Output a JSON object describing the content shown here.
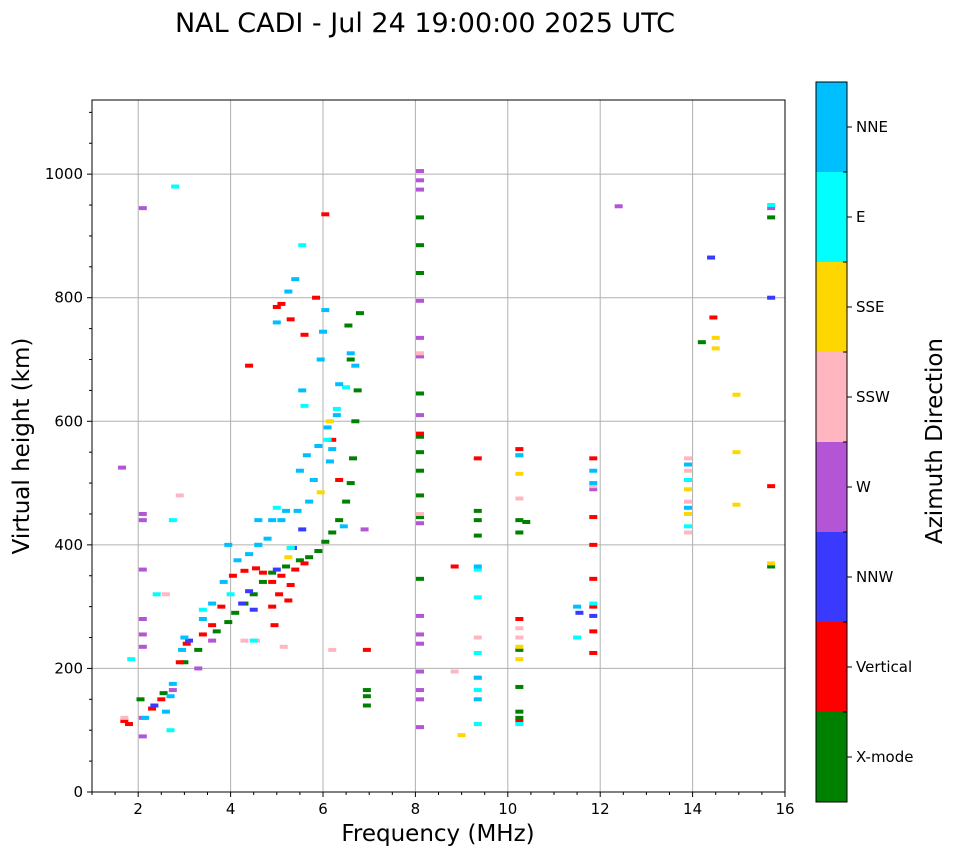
{
  "chart_data": {
    "type": "scatter",
    "title": "NAL CADI - Jul 24 19:00:00 2025 UTC",
    "xlabel": "Frequency (MHz)",
    "ylabel": "Virtual height (km)",
    "xlim": [
      1,
      16
    ],
    "ylim": [
      0,
      1120
    ],
    "xticks": [
      2,
      4,
      6,
      8,
      10,
      12,
      14,
      16
    ],
    "yticks": [
      0,
      200,
      400,
      600,
      800,
      1000
    ],
    "grid": true,
    "colorbar": {
      "label": "Azimuth Direction",
      "categories": [
        "X-mode",
        "Vertical",
        "NNW",
        "W",
        "SSW",
        "SSE",
        "E",
        "NNE"
      ],
      "colors": [
        "#008000",
        "#ff0000",
        "#3a3aff",
        "#b455d6",
        "#ffb6c1",
        "#ffd700",
        "#00ffff",
        "#00bfff"
      ]
    },
    "series": [
      {
        "name": "X-mode",
        "points": [
          [
            2.05,
            150
          ],
          [
            2.55,
            160
          ],
          [
            3.0,
            210
          ],
          [
            3.3,
            230
          ],
          [
            3.7,
            260
          ],
          [
            3.95,
            275
          ],
          [
            4.1,
            290
          ],
          [
            4.3,
            305
          ],
          [
            4.5,
            320
          ],
          [
            4.7,
            340
          ],
          [
            4.9,
            355
          ],
          [
            5.2,
            365
          ],
          [
            5.5,
            375
          ],
          [
            5.7,
            380
          ],
          [
            5.9,
            390
          ],
          [
            6.05,
            405
          ],
          [
            6.2,
            420
          ],
          [
            6.35,
            440
          ],
          [
            6.5,
            470
          ],
          [
            6.6,
            500
          ],
          [
            6.65,
            540
          ],
          [
            6.7,
            600
          ],
          [
            6.75,
            650
          ],
          [
            6.6,
            700
          ],
          [
            6.55,
            755
          ],
          [
            6.8,
            775
          ],
          [
            6.95,
            140
          ],
          [
            6.95,
            155
          ],
          [
            6.95,
            165
          ],
          [
            8.1,
            345
          ],
          [
            8.1,
            445
          ],
          [
            8.1,
            480
          ],
          [
            8.1,
            520
          ],
          [
            8.1,
            550
          ],
          [
            8.1,
            575
          ],
          [
            8.1,
            645
          ],
          [
            8.1,
            840
          ],
          [
            8.1,
            885
          ],
          [
            8.1,
            930
          ],
          [
            9.35,
            440
          ],
          [
            9.35,
            455
          ],
          [
            9.35,
            415
          ],
          [
            10.25,
            120
          ],
          [
            10.25,
            130
          ],
          [
            10.25,
            170
          ],
          [
            10.25,
            230
          ],
          [
            10.25,
            420
          ],
          [
            10.25,
            440
          ],
          [
            10.4,
            437
          ],
          [
            14.2,
            728
          ],
          [
            15.7,
            365
          ],
          [
            15.7,
            930
          ]
        ]
      },
      {
        "name": "Vertical",
        "points": [
          [
            1.7,
            115
          ],
          [
            1.8,
            110
          ],
          [
            2.3,
            135
          ],
          [
            2.5,
            150
          ],
          [
            2.9,
            210
          ],
          [
            3.05,
            240
          ],
          [
            3.4,
            255
          ],
          [
            3.6,
            270
          ],
          [
            3.8,
            300
          ],
          [
            4.05,
            350
          ],
          [
            4.3,
            358
          ],
          [
            4.55,
            362
          ],
          [
            4.7,
            355
          ],
          [
            4.9,
            340
          ],
          [
            5.1,
            350
          ],
          [
            5.4,
            360
          ],
          [
            5.6,
            370
          ],
          [
            5.3,
            335
          ],
          [
            5.25,
            310
          ],
          [
            5.05,
            320
          ],
          [
            4.95,
            270
          ],
          [
            4.9,
            300
          ],
          [
            5.0,
            785
          ],
          [
            5.1,
            790
          ],
          [
            5.3,
            765
          ],
          [
            5.6,
            740
          ],
          [
            6.05,
            935
          ],
          [
            5.85,
            800
          ],
          [
            4.4,
            690
          ],
          [
            6.2,
            570
          ],
          [
            6.35,
            505
          ],
          [
            6.95,
            230
          ],
          [
            8.1,
            580
          ],
          [
            8.85,
            365
          ],
          [
            9.35,
            540
          ],
          [
            10.25,
            115
          ],
          [
            10.25,
            555
          ],
          [
            10.25,
            280
          ],
          [
            11.85,
            225
          ],
          [
            11.85,
            260
          ],
          [
            11.85,
            300
          ],
          [
            11.85,
            345
          ],
          [
            11.85,
            400
          ],
          [
            11.85,
            445
          ],
          [
            11.85,
            540
          ],
          [
            14.45,
            768
          ],
          [
            15.7,
            495
          ]
        ]
      },
      {
        "name": "NNW",
        "points": [
          [
            2.35,
            140
          ],
          [
            3.1,
            245
          ],
          [
            4.25,
            305
          ],
          [
            4.4,
            325
          ],
          [
            4.5,
            295
          ],
          [
            5.0,
            360
          ],
          [
            5.35,
            395
          ],
          [
            5.55,
            425
          ],
          [
            11.55,
            290
          ],
          [
            11.85,
            285
          ],
          [
            14.4,
            865
          ],
          [
            15.7,
            800
          ]
        ]
      },
      {
        "name": "W",
        "points": [
          [
            1.65,
            525
          ],
          [
            2.1,
            90
          ],
          [
            2.1,
            120
          ],
          [
            2.1,
            235
          ],
          [
            2.1,
            255
          ],
          [
            2.1,
            280
          ],
          [
            2.1,
            360
          ],
          [
            2.1,
            450
          ],
          [
            2.1,
            440
          ],
          [
            2.1,
            945
          ],
          [
            2.75,
            165
          ],
          [
            3.3,
            200
          ],
          [
            3.6,
            245
          ],
          [
            6.9,
            425
          ],
          [
            8.1,
            105
          ],
          [
            8.1,
            150
          ],
          [
            8.1,
            165
          ],
          [
            8.1,
            195
          ],
          [
            8.1,
            240
          ],
          [
            8.1,
            255
          ],
          [
            8.1,
            285
          ],
          [
            8.1,
            435
          ],
          [
            8.1,
            610
          ],
          [
            8.1,
            705
          ],
          [
            8.1,
            735
          ],
          [
            8.1,
            795
          ],
          [
            8.1,
            975
          ],
          [
            8.1,
            990
          ],
          [
            8.1,
            1005
          ],
          [
            12.4,
            948
          ],
          [
            11.85,
            490
          ],
          [
            15.7,
            945
          ]
        ]
      },
      {
        "name": "SSW",
        "points": [
          [
            1.7,
            120
          ],
          [
            2.6,
            320
          ],
          [
            2.9,
            480
          ],
          [
            4.3,
            245
          ],
          [
            4.55,
            245
          ],
          [
            5.15,
            235
          ],
          [
            6.2,
            230
          ],
          [
            8.1,
            450
          ],
          [
            8.1,
            710
          ],
          [
            8.85,
            195
          ],
          [
            9.35,
            250
          ],
          [
            10.25,
            110
          ],
          [
            10.25,
            250
          ],
          [
            10.25,
            265
          ],
          [
            10.25,
            475
          ],
          [
            11.85,
            495
          ],
          [
            13.9,
            420
          ],
          [
            13.9,
            470
          ],
          [
            13.9,
            520
          ],
          [
            13.9,
            540
          ]
        ]
      },
      {
        "name": "SSE",
        "points": [
          [
            5.25,
            380
          ],
          [
            5.3,
            395
          ],
          [
            5.95,
            485
          ],
          [
            6.15,
            600
          ],
          [
            9.0,
            92
          ],
          [
            10.25,
            215
          ],
          [
            10.25,
            235
          ],
          [
            10.25,
            515
          ],
          [
            13.9,
            450
          ],
          [
            13.9,
            490
          ],
          [
            14.5,
            735
          ],
          [
            14.5,
            718
          ],
          [
            14.95,
            643
          ],
          [
            14.95,
            550
          ],
          [
            14.95,
            465
          ],
          [
            15.7,
            370
          ]
        ]
      },
      {
        "name": "E",
        "points": [
          [
            1.85,
            215
          ],
          [
            2.4,
            320
          ],
          [
            2.7,
            100
          ],
          [
            2.75,
            440
          ],
          [
            2.8,
            980
          ],
          [
            3.4,
            295
          ],
          [
            4.0,
            320
          ],
          [
            4.5,
            245
          ],
          [
            4.6,
            400
          ],
          [
            5.0,
            460
          ],
          [
            5.3,
            395
          ],
          [
            5.55,
            885
          ],
          [
            5.6,
            625
          ],
          [
            6.1,
            570
          ],
          [
            6.3,
            620
          ],
          [
            6.5,
            655
          ],
          [
            9.35,
            110
          ],
          [
            9.35,
            165
          ],
          [
            9.35,
            185
          ],
          [
            9.35,
            225
          ],
          [
            9.35,
            360
          ],
          [
            9.35,
            315
          ],
          [
            10.25,
            110
          ],
          [
            10.25,
            545
          ],
          [
            11.5,
            250
          ],
          [
            11.85,
            305
          ],
          [
            13.9,
            430
          ],
          [
            13.9,
            505
          ],
          [
            15.7,
            950
          ]
        ]
      },
      {
        "name": "NNE",
        "points": [
          [
            2.15,
            120
          ],
          [
            2.6,
            130
          ],
          [
            2.7,
            155
          ],
          [
            2.75,
            175
          ],
          [
            2.95,
            230
          ],
          [
            3.0,
            250
          ],
          [
            3.4,
            280
          ],
          [
            3.6,
            305
          ],
          [
            3.85,
            340
          ],
          [
            3.95,
            400
          ],
          [
            4.15,
            375
          ],
          [
            4.4,
            385
          ],
          [
            4.6,
            400
          ],
          [
            4.6,
            440
          ],
          [
            4.8,
            410
          ],
          [
            4.9,
            440
          ],
          [
            5.0,
            760
          ],
          [
            5.1,
            440
          ],
          [
            5.2,
            455
          ],
          [
            5.25,
            810
          ],
          [
            5.4,
            830
          ],
          [
            5.45,
            455
          ],
          [
            5.5,
            520
          ],
          [
            5.55,
            650
          ],
          [
            5.65,
            545
          ],
          [
            5.7,
            470
          ],
          [
            5.8,
            505
          ],
          [
            5.9,
            560
          ],
          [
            5.95,
            700
          ],
          [
            6.0,
            745
          ],
          [
            6.05,
            780
          ],
          [
            6.1,
            590
          ],
          [
            6.15,
            535
          ],
          [
            6.2,
            555
          ],
          [
            6.3,
            610
          ],
          [
            6.35,
            660
          ],
          [
            6.45,
            430
          ],
          [
            6.6,
            710
          ],
          [
            6.7,
            690
          ],
          [
            9.35,
            185
          ],
          [
            9.35,
            150
          ],
          [
            9.35,
            365
          ],
          [
            10.25,
            545
          ],
          [
            11.5,
            300
          ],
          [
            11.85,
            500
          ],
          [
            11.85,
            520
          ],
          [
            13.9,
            460
          ],
          [
            13.9,
            530
          ]
        ]
      }
    ]
  }
}
